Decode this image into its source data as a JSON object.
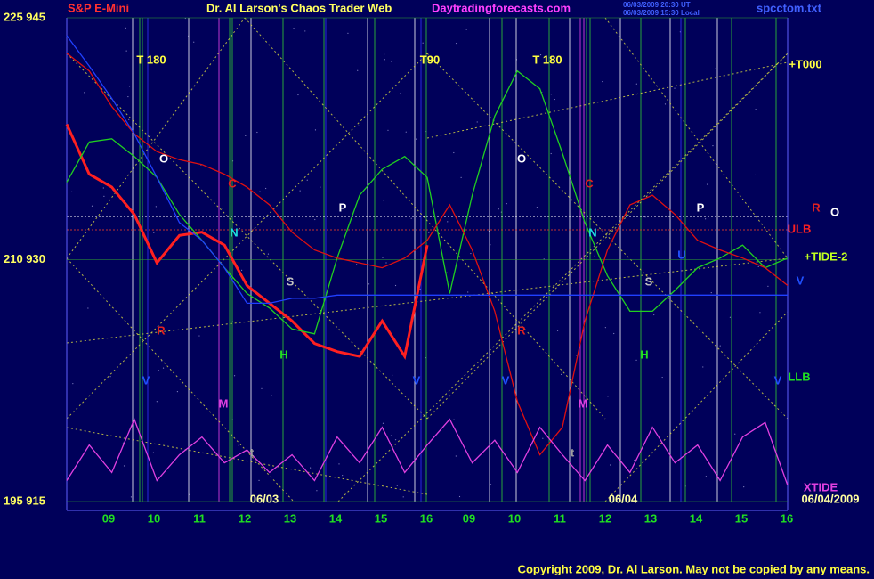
{
  "header": {
    "instrument": "S&P E-Mini",
    "title": "Dr. Al Larson's Chaos Trader Web",
    "site": "Daytradingforecasts.com",
    "stamp": [
      "06/03/2009 20:30 UT",
      "06/03/2009 15:30 Local"
    ],
    "file": "spcctom.txt"
  },
  "chart_data": {
    "type": "line",
    "ylim": [
      915,
      945
    ],
    "yticks": [
      {
        "value": 945,
        "label": "225 945"
      },
      {
        "value": 930,
        "label": "210 930"
      },
      {
        "value": 915,
        "label": "195 915"
      }
    ],
    "x_labels": [
      "09",
      "10",
      "11",
      "12",
      "13",
      "14",
      "15",
      "16",
      "09",
      "10",
      "11",
      "12",
      "13",
      "14",
      "15",
      "16"
    ],
    "date_labels": [
      "06/03",
      "06/04",
      "06/04/2009"
    ],
    "series": [
      {
        "name": "price",
        "color": "#ff2020",
        "values": [
          938.4,
          935.3,
          934.5,
          932.8,
          929.8,
          931.5,
          931.7,
          930.9,
          928.4,
          927.3,
          926.2,
          924.8,
          924.3,
          924.0,
          926.2,
          924.0,
          930.9,
          null,
          null,
          null,
          null,
          null,
          null,
          null,
          null,
          null,
          null,
          null,
          null,
          null,
          null,
          null,
          null
        ]
      },
      {
        "name": "green",
        "color": "#20d020",
        "values": [
          934.8,
          937.3,
          937.5,
          936.4,
          935.1,
          932.8,
          931.2,
          929.5,
          927.9,
          927.0,
          925.7,
          925.4,
          930.1,
          934.0,
          935.6,
          936.4,
          935.1,
          927.9,
          934.0,
          938.9,
          941.7,
          940.6,
          936.6,
          932.3,
          929.0,
          926.8,
          926.8,
          928.1,
          929.5,
          930.1,
          930.9,
          929.5,
          930.1
        ]
      },
      {
        "name": "red",
        "color": "#e01010",
        "values": [
          942.8,
          941.7,
          939.5,
          937.8,
          936.7,
          936.2,
          935.9,
          935.3,
          934.5,
          933.4,
          931.7,
          930.6,
          930.1,
          929.8,
          929.5,
          930.1,
          931.2,
          933.4,
          930.6,
          926.8,
          921.2,
          917.9,
          919.6,
          926.2,
          930.6,
          933.4,
          934.0,
          932.8,
          931.2,
          930.6,
          930.1,
          929.5,
          928.4
        ]
      },
      {
        "name": "blue",
        "color": "#2040ff",
        "values": [
          943.9,
          942.0,
          940.0,
          937.8,
          935.1,
          932.3,
          931.2,
          929.5,
          927.3,
          927.3,
          927.6,
          927.6,
          927.8,
          927.8,
          927.8,
          927.8,
          927.8,
          927.8,
          927.8,
          927.8,
          927.8,
          927.8,
          927.8,
          927.8,
          927.8,
          927.8,
          927.8,
          927.8,
          927.8,
          927.8,
          927.8,
          927.8,
          927.8
        ]
      },
      {
        "name": "xtide",
        "color": "#e040e0",
        "values": [
          916.3,
          918.5,
          916.8,
          920.1,
          916.3,
          917.9,
          919.0,
          917.4,
          918.2,
          916.8,
          917.9,
          916.3,
          919.0,
          917.4,
          919.6,
          916.8,
          918.5,
          920.1,
          917.4,
          918.8,
          916.8,
          919.6,
          917.9,
          916.3,
          918.5,
          916.8,
          919.6,
          917.4,
          918.5,
          916.3,
          919.0,
          919.9,
          916.0
        ]
      }
    ],
    "annotations": [
      {
        "text": "T 180",
        "color": "#ffff40"
      },
      {
        "text": "T90",
        "color": "#ffff40"
      },
      {
        "text": "T 180",
        "color": "#ffff40"
      },
      {
        "text": "+T000",
        "color": "#ffff40"
      },
      {
        "text": "O",
        "color": "#ffffff"
      },
      {
        "text": "O",
        "color": "#ffffff"
      },
      {
        "text": "C",
        "color": "#e02020"
      },
      {
        "text": "C",
        "color": "#e02020"
      },
      {
        "text": "N",
        "color": "#20e0e0"
      },
      {
        "text": "N",
        "color": "#20e0e0"
      },
      {
        "text": "P",
        "color": "#ffffff"
      },
      {
        "text": "P",
        "color": "#ffffff"
      },
      {
        "text": "S",
        "color": "#c0c0c0"
      },
      {
        "text": "S",
        "color": "#c0c0c0"
      },
      {
        "text": "H",
        "color": "#20e020"
      },
      {
        "text": "H",
        "color": "#20e020"
      },
      {
        "text": "R",
        "color": "#e02020"
      },
      {
        "text": "R",
        "color": "#e02020"
      },
      {
        "text": "V",
        "color": "#2050ff"
      },
      {
        "text": "V",
        "color": "#2050ff"
      },
      {
        "text": "V",
        "color": "#2050ff"
      },
      {
        "text": "V",
        "color": "#2050ff"
      },
      {
        "text": "V",
        "color": "#2050ff"
      },
      {
        "text": "M",
        "color": "#e040e0"
      },
      {
        "text": "M",
        "color": "#e040e0"
      },
      {
        "text": "t",
        "color": "#a0a0a0"
      },
      {
        "text": "t",
        "color": "#a0a0a0"
      },
      {
        "text": "ULB",
        "color": "#ff2020"
      },
      {
        "text": "LLB",
        "color": "#20e020"
      },
      {
        "text": "+TIDE-2",
        "color": "#c0ff20"
      },
      {
        "text": "XTIDE",
        "color": "#e040e0"
      },
      {
        "text": "R",
        "color": "#e02020"
      },
      {
        "text": "O",
        "color": "#ffffff"
      },
      {
        "text": "U",
        "color": "#2050ff"
      }
    ]
  },
  "footer": {
    "copyright": "Copyright 2009, Dr. Al Larson. May not be copied by any means."
  }
}
